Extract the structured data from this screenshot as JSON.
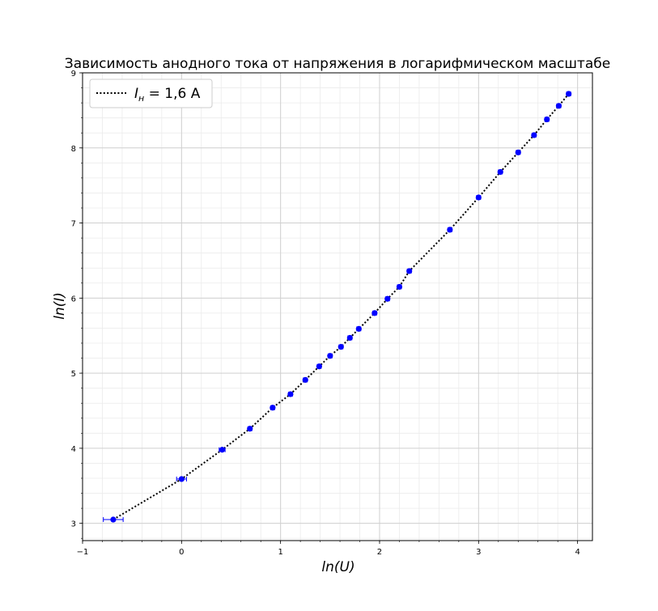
{
  "chart_data": {
    "type": "scatter",
    "title": "Зависимость анодного тока от напряжения в логарифмическом масштабе",
    "xlabel": "ln(U)",
    "ylabel": "ln(I)",
    "xlim": [
      -1.0,
      4.15
    ],
    "ylim": [
      2.77,
      9.0
    ],
    "x_ticks": [
      -1,
      0,
      1,
      2,
      3,
      4
    ],
    "y_ticks": [
      3,
      4,
      5,
      6,
      7,
      8,
      9
    ],
    "grid": true,
    "legend_position": "top-left",
    "series": [
      {
        "name": "I_н = 1,6 A",
        "legend_label": {
          "symbol": "I",
          "subscript": "н",
          "rest": " = 1,6 A"
        },
        "marker_color": "#0000ff",
        "line_color": "#000000",
        "line_style": "dotted",
        "x": [
          -0.69,
          0.0,
          0.41,
          0.69,
          0.92,
          1.1,
          1.25,
          1.39,
          1.5,
          1.61,
          1.7,
          1.79,
          1.95,
          2.08,
          2.2,
          2.3,
          2.71,
          3.0,
          3.22,
          3.4,
          3.56,
          3.69,
          3.81,
          3.91
        ],
        "y": [
          3.05,
          3.59,
          3.98,
          4.26,
          4.54,
          4.72,
          4.91,
          5.09,
          5.23,
          5.35,
          5.47,
          5.59,
          5.8,
          5.99,
          6.15,
          6.36,
          6.91,
          7.34,
          7.68,
          7.94,
          8.17,
          8.38,
          8.56,
          8.72
        ],
        "x_error": [
          0.1,
          0.05,
          0.03,
          0.02,
          0.02,
          0.02,
          0.02,
          0.02,
          0.02,
          0.02,
          0.02,
          0.02,
          0.02,
          0.02,
          0.02,
          0.02,
          0.02,
          0.02,
          0.02,
          0.02,
          0.02,
          0.02,
          0.02,
          0.02
        ]
      }
    ]
  }
}
